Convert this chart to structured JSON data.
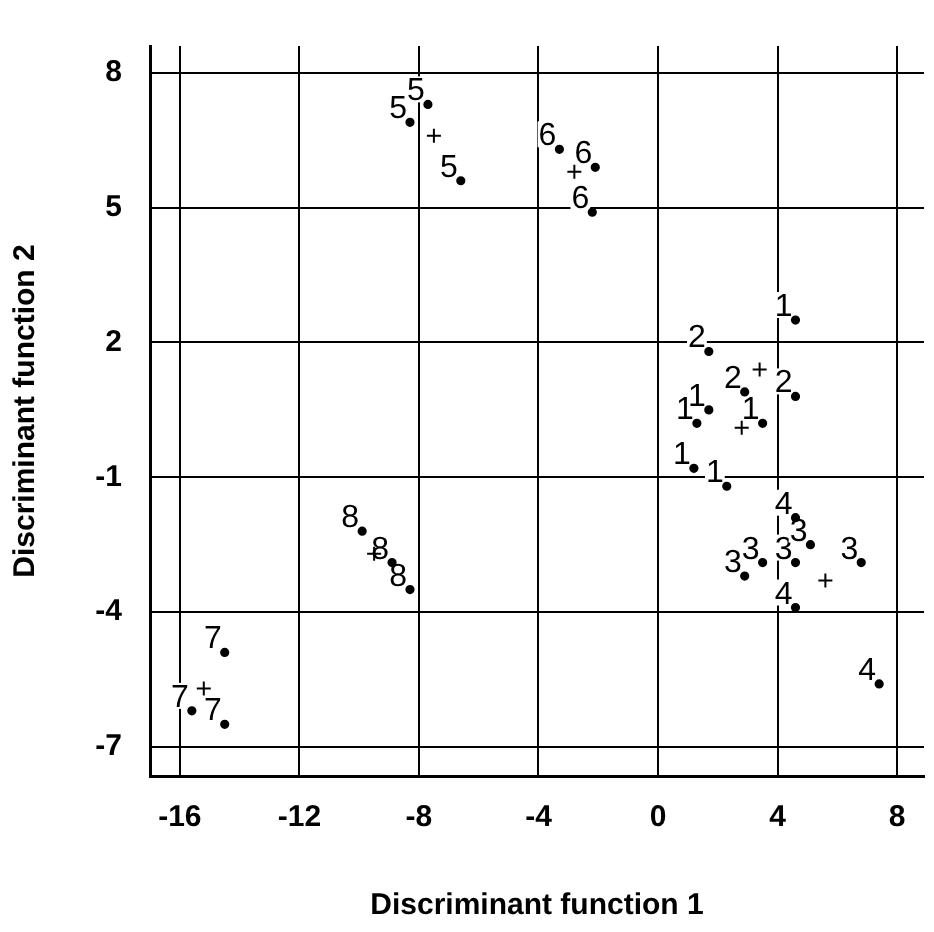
{
  "chart_data": {
    "type": "scatter",
    "xlabel": "Discriminant function 1",
    "ylabel": "Discriminant function 2",
    "xlim": [
      -17,
      8.9
    ],
    "ylim": [
      -7.65,
      8.6
    ],
    "xticks": [
      -16,
      -12,
      -8,
      -4,
      0,
      4,
      8
    ],
    "yticks": [
      -7,
      -4,
      -1,
      2,
      5,
      8
    ],
    "grid": true,
    "legend": false,
    "marker": "circle",
    "series": [
      {
        "name": "1",
        "color": "#000000",
        "x": [
          4.6,
          1.3,
          1.7,
          3.5,
          1.2,
          2.3
        ],
        "values": [
          2.5,
          0.2,
          0.5,
          0.2,
          -0.8,
          -1.2
        ]
      },
      {
        "name": "2",
        "color": "#000000",
        "x": [
          1.7,
          2.9,
          4.6
        ],
        "values": [
          1.8,
          0.9,
          0.8
        ]
      },
      {
        "name": "3",
        "color": "#000000",
        "x": [
          2.9,
          3.5,
          4.6,
          5.1,
          6.8
        ],
        "values": [
          -3.2,
          -2.9,
          -2.9,
          -2.5,
          -2.9
        ]
      },
      {
        "name": "4",
        "color": "#000000",
        "x": [
          4.6,
          4.6,
          7.4
        ],
        "values": [
          -1.9,
          -3.9,
          -5.6
        ]
      },
      {
        "name": "5",
        "color": "#000000",
        "x": [
          -8.3,
          -7.7,
          -6.6
        ],
        "values": [
          6.9,
          7.3,
          5.6
        ]
      },
      {
        "name": "6",
        "color": "#000000",
        "x": [
          -3.3,
          -2.1,
          -2.2
        ],
        "values": [
          6.3,
          5.9,
          4.9
        ]
      },
      {
        "name": "7",
        "color": "#000000",
        "x": [
          -14.5,
          -15.6,
          -14.5
        ],
        "values": [
          -4.9,
          -6.2,
          -6.5
        ]
      },
      {
        "name": "8",
        "color": "#000000",
        "x": [
          -9.9,
          -8.9,
          -8.3
        ],
        "values": [
          -2.2,
          -2.9,
          -3.5
        ]
      },
      {
        "color": "#000000",
        "marker": "cross",
        "x": [
          2.8,
          3.4,
          5.6,
          -7.5,
          -2.8,
          -15.2,
          -9.5
        ],
        "values": [
          0.1,
          1.4,
          -3.3,
          6.6,
          5.8,
          -5.7,
          -2.7
        ]
      }
    ]
  }
}
